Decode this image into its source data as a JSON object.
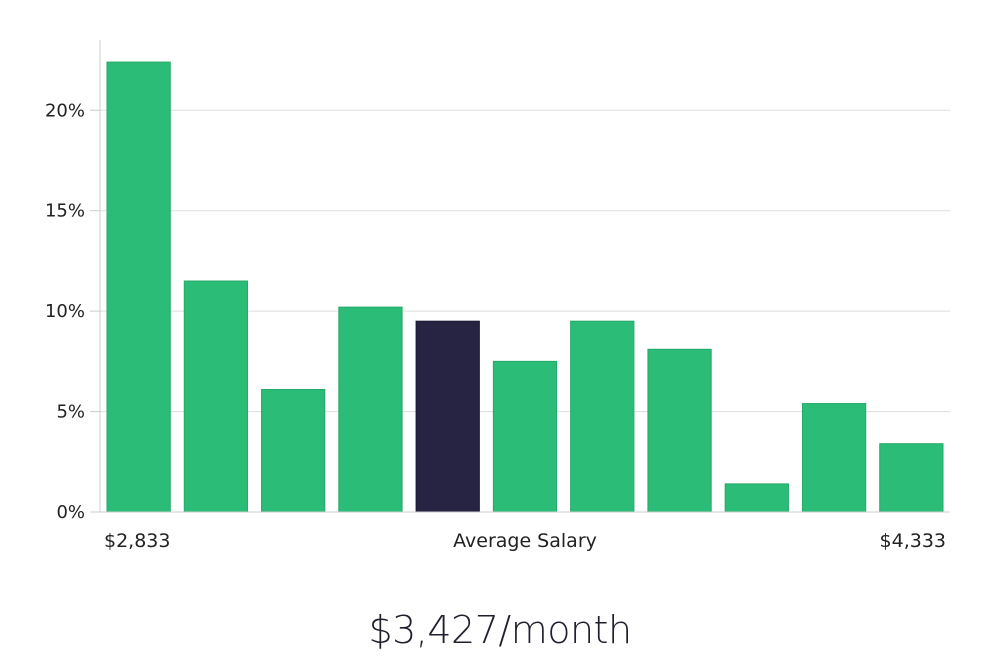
{
  "chart_data": {
    "type": "bar",
    "values": [
      22.4,
      11.5,
      6.1,
      10.2,
      9.5,
      7.5,
      9.5,
      8.1,
      1.4,
      5.4,
      3.4
    ],
    "highlight_index": 4,
    "ylim": [
      0,
      23.5
    ],
    "yticks": [
      0,
      5,
      10,
      15,
      20
    ],
    "ytick_labels": [
      "0%",
      "5%",
      "10%",
      "15%",
      "20%"
    ],
    "x_min_label": "$2,833",
    "x_max_label": "$4,333",
    "xlabel": "Average Salary",
    "grid": true,
    "colors": {
      "bar": "#2bbd77",
      "highlight": "#272443",
      "grid": "#dddddd",
      "axis": "#cccccc"
    }
  },
  "salary_text": "$3,427/month"
}
